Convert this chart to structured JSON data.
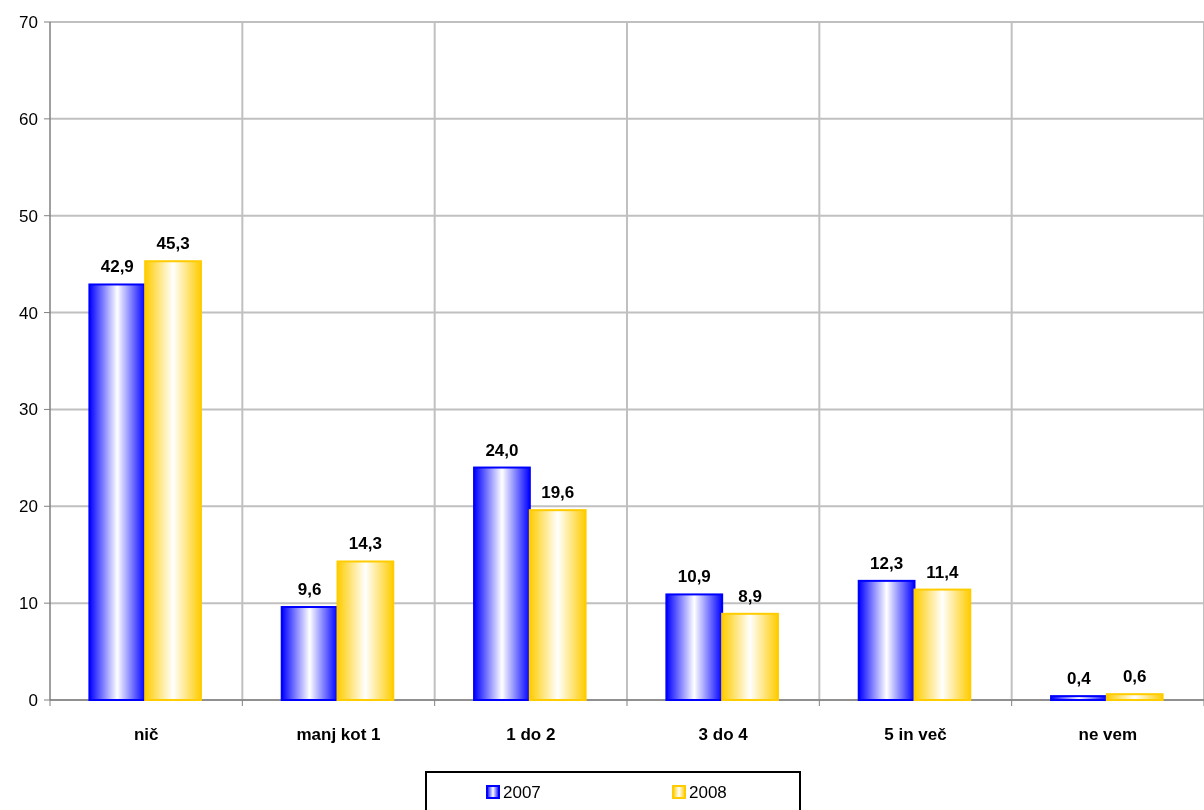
{
  "chart_data": {
    "type": "bar",
    "categories": [
      "nič",
      "manj kot 1",
      "1 do 2",
      "3 do 4",
      "5 in več",
      "ne vem"
    ],
    "series": [
      {
        "name": "2007",
        "color": "#0000ff",
        "values": [
          42.9,
          9.6,
          24.0,
          10.9,
          12.3,
          0.4
        ],
        "value_labels": [
          "42,9",
          "9,6",
          "24,0",
          "10,9",
          "12,3",
          "0,4"
        ]
      },
      {
        "name": "2008",
        "color": "#ffcc00",
        "values": [
          45.3,
          14.3,
          19.6,
          8.9,
          11.4,
          0.6
        ],
        "value_labels": [
          "45,3",
          "14,3",
          "19,6",
          "8,9",
          "11,4",
          "0,6"
        ]
      }
    ],
    "ylim": [
      0,
      70
    ],
    "yticks": [
      0,
      10,
      20,
      30,
      40,
      50,
      60,
      70
    ],
    "grid": true,
    "legend": "bottom"
  }
}
